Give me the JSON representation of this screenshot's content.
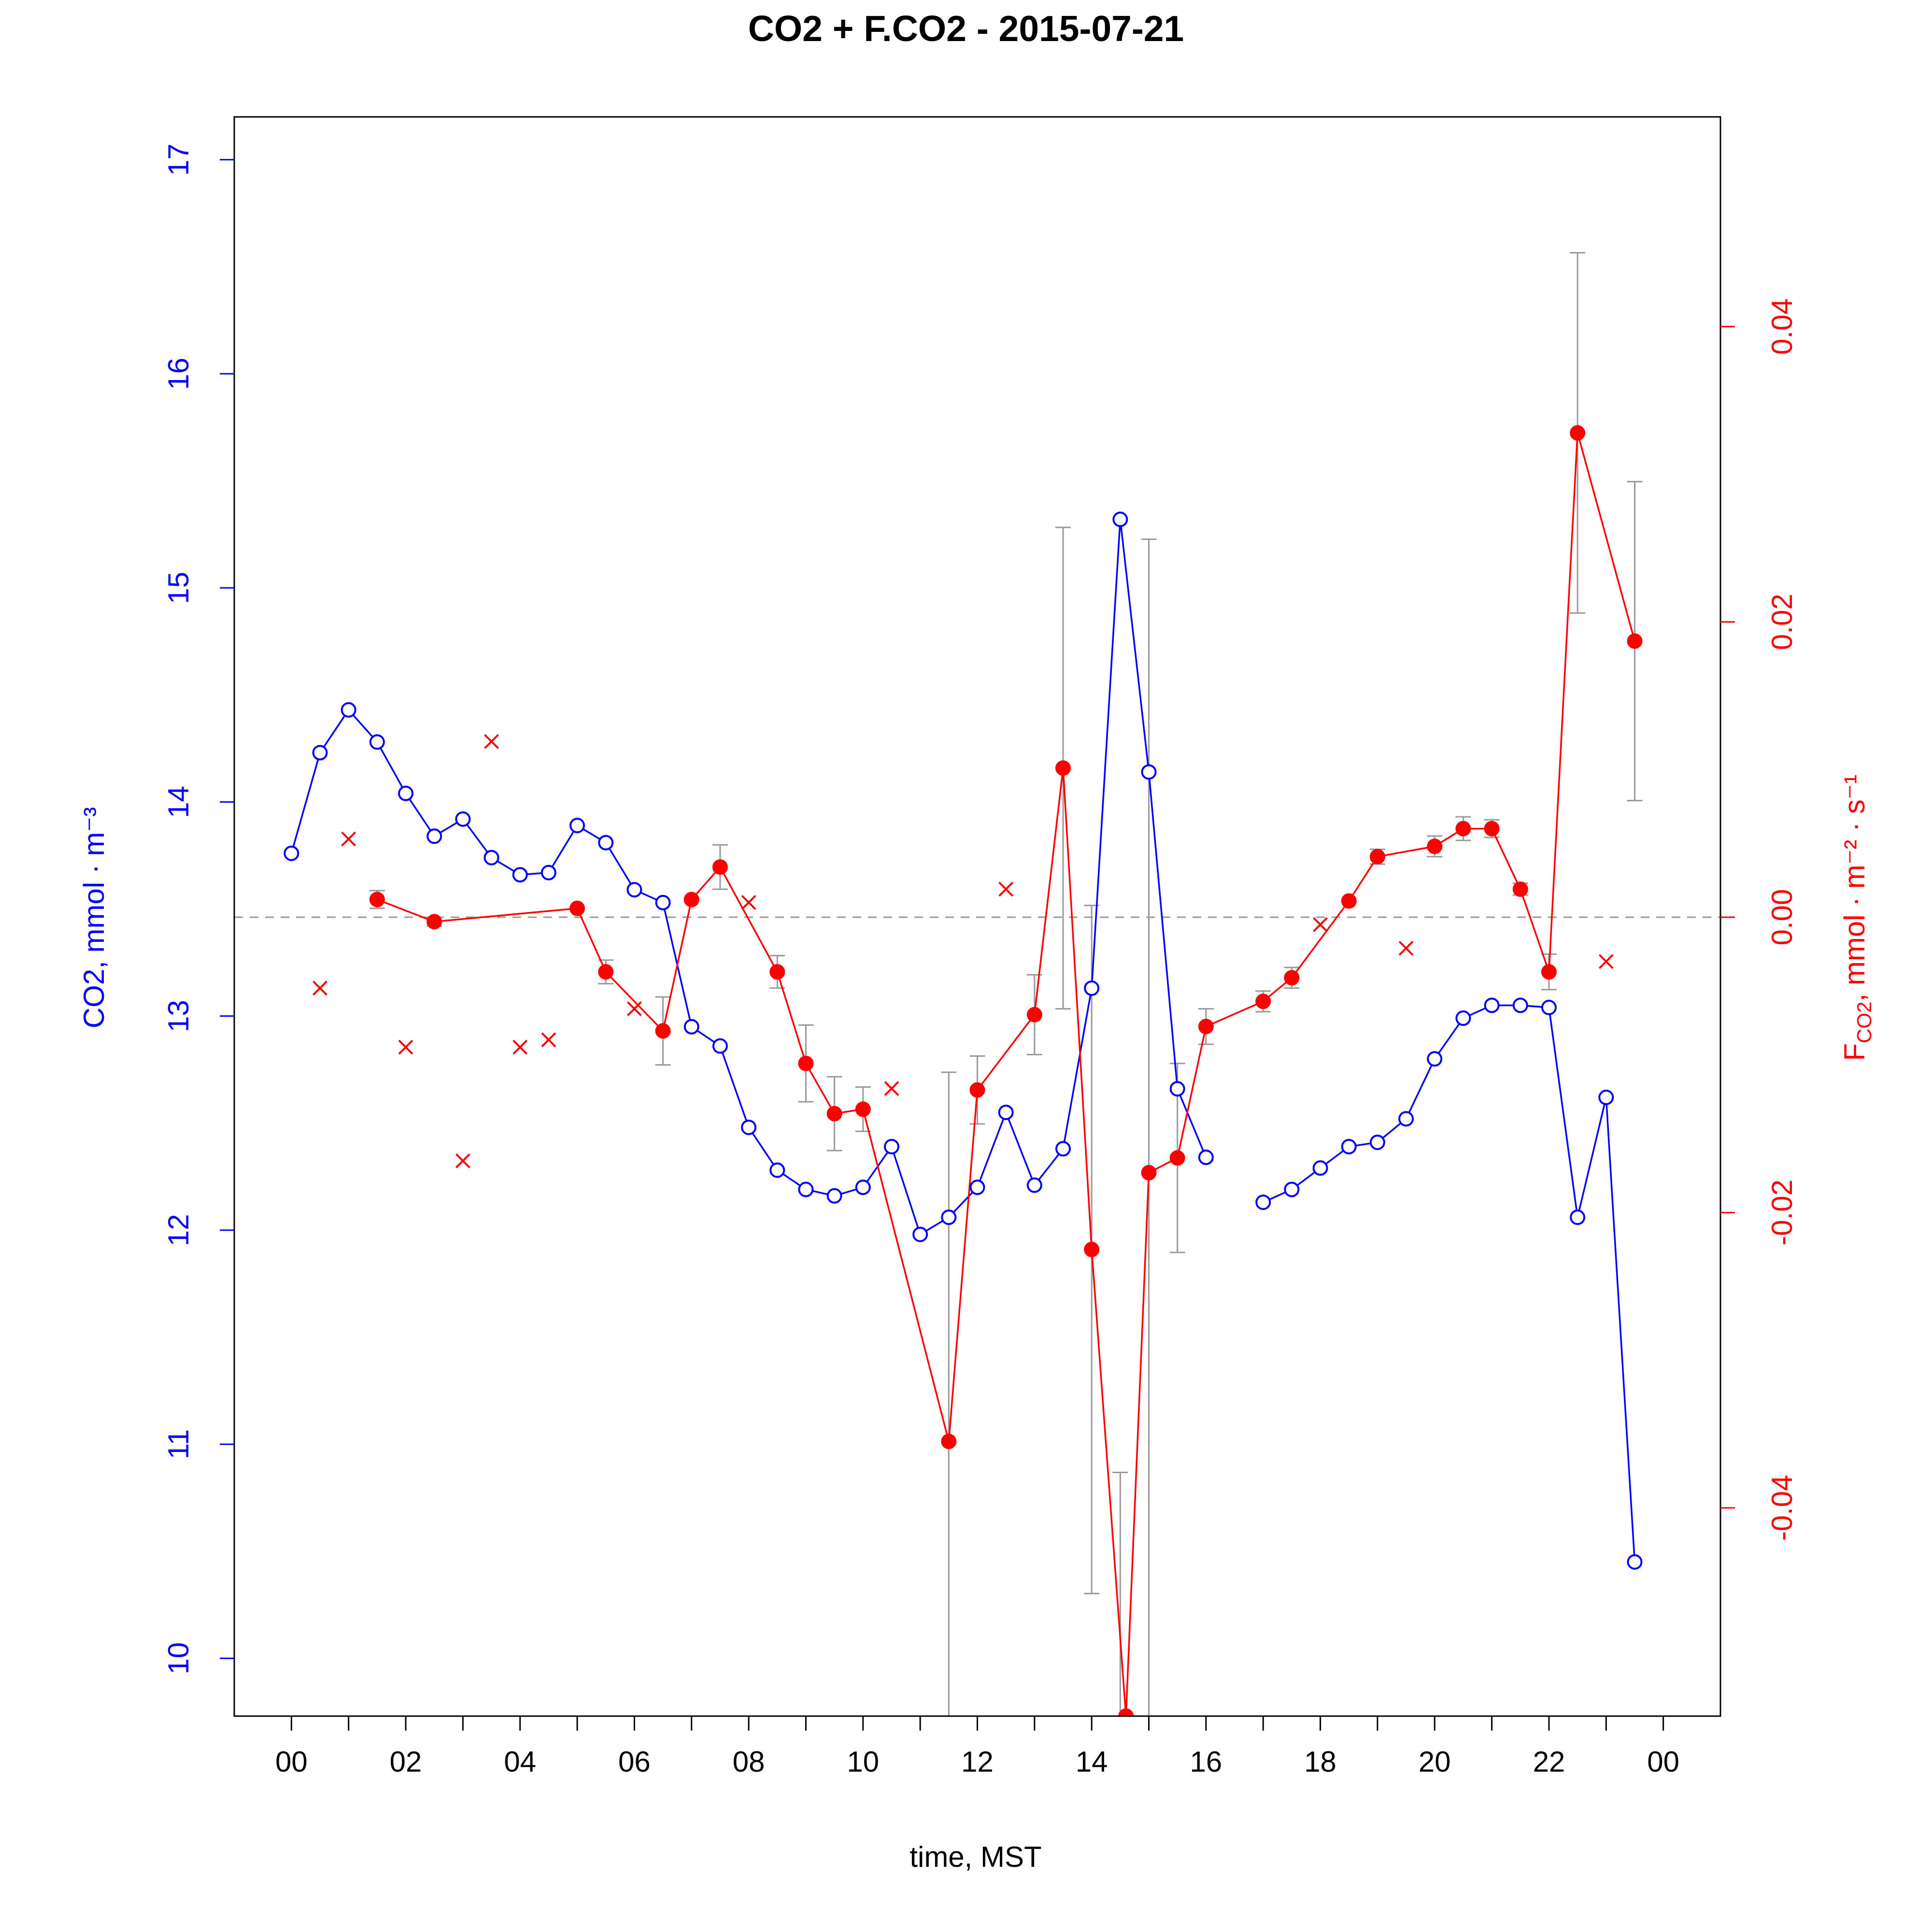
{
  "chart_data": {
    "type": "line",
    "title": "CO2 + F.CO2 -  2015-07-21",
    "xlabel": "time, MST",
    "ylabel_left": "CO2, mmol · m⁻³",
    "ylabel_right": {
      "prefix": "F",
      "sub": "CO2",
      "rest": ", mmol · m⁻² · s⁻¹"
    },
    "xlim": [
      -1.0,
      25.0
    ],
    "x_ticks": [
      0,
      1,
      2,
      3,
      4,
      5,
      6,
      7,
      8,
      9,
      10,
      11,
      12,
      13,
      14,
      15,
      16,
      17,
      18,
      19,
      20,
      21,
      22,
      23,
      24
    ],
    "x_tick_labels": [
      "00",
      "02",
      "04",
      "06",
      "08",
      "10",
      "12",
      "14",
      "16",
      "18",
      "20",
      "22",
      "00"
    ],
    "ylim_left": [
      9.73,
      17.2
    ],
    "y_ticks_left": [
      "10",
      "11",
      "12",
      "13",
      "14",
      "15",
      "16",
      "17"
    ],
    "ylim_right": [
      -0.0541,
      0.0542
    ],
    "y_ticks_right": [
      "-0.04",
      "-0.02",
      "0.00",
      "0.02",
      "0.04"
    ],
    "zero_line": 0.0,
    "grid": false,
    "colors": {
      "co2": "#0000ff",
      "flux": "#ff0000",
      "errorbar": "#999999",
      "zero_line": "#999999"
    },
    "series": [
      {
        "key": "co2",
        "axis": "left",
        "marker": "open-circle",
        "color": "#0000ff",
        "points": [
          [
            0.0,
            13.76
          ],
          [
            0.5,
            14.23
          ],
          [
            1.0,
            14.43
          ],
          [
            1.5,
            14.28
          ],
          [
            2.0,
            14.04
          ],
          [
            2.5,
            13.84
          ],
          [
            3.0,
            13.92
          ],
          [
            3.5,
            13.74
          ],
          [
            4.0,
            13.66
          ],
          [
            4.5,
            13.67
          ],
          [
            5.0,
            13.89
          ],
          [
            5.5,
            13.81
          ],
          [
            6.0,
            13.59
          ],
          [
            6.5,
            13.53
          ],
          [
            7.0,
            12.95
          ],
          [
            7.5,
            12.86
          ],
          [
            8.0,
            12.48
          ],
          [
            8.5,
            12.28
          ],
          [
            9.0,
            12.19
          ],
          [
            9.5,
            12.16
          ],
          [
            10.0,
            12.2
          ],
          [
            10.5,
            12.39
          ],
          [
            11.0,
            11.98
          ],
          [
            11.5,
            12.06
          ],
          [
            12.0,
            12.2
          ],
          [
            12.5,
            12.55
          ],
          [
            13.0,
            12.21
          ],
          [
            13.5,
            12.38
          ],
          [
            14.0,
            13.13
          ],
          [
            14.5,
            15.32
          ],
          [
            15.0,
            14.14
          ],
          [
            15.5,
            12.66
          ],
          [
            16.0,
            12.34
          ],
          [
            17.0,
            12.13
          ],
          [
            17.5,
            12.19
          ],
          [
            18.0,
            12.29
          ],
          [
            18.5,
            12.39
          ],
          [
            19.0,
            12.41
          ],
          [
            19.5,
            12.52
          ],
          [
            20.0,
            12.8
          ],
          [
            20.5,
            12.99
          ],
          [
            21.0,
            13.05
          ],
          [
            21.5,
            13.05
          ],
          [
            22.0,
            13.04
          ],
          [
            22.5,
            12.06
          ],
          [
            23.0,
            12.62
          ],
          [
            23.5,
            10.45
          ]
        ],
        "segments": [
          [
            0,
            32
          ],
          [
            33,
            46
          ]
        ]
      },
      {
        "key": "flux",
        "axis": "right",
        "marker": "filled-circle",
        "color": "#ff0000",
        "points": [
          [
            1.5,
            0.0012
          ],
          [
            2.5,
            -0.0003
          ],
          [
            5.0,
            0.0006
          ],
          [
            5.5,
            -0.0037
          ],
          [
            6.5,
            -0.0077
          ],
          [
            7.0,
            0.0012
          ],
          [
            7.5,
            0.0034
          ],
          [
            8.5,
            -0.0037
          ],
          [
            9.0,
            -0.0099
          ],
          [
            9.5,
            -0.0133
          ],
          [
            10.0,
            -0.013
          ],
          [
            11.5,
            -0.0355
          ],
          [
            12.0,
            -0.0117
          ],
          [
            13.0,
            -0.0066
          ],
          [
            13.5,
            0.0101
          ],
          [
            14.0,
            -0.0225
          ],
          [
            14.6,
            -0.0541
          ],
          [
            15.0,
            -0.0173
          ],
          [
            15.5,
            -0.0163
          ],
          [
            16.0,
            -0.0074
          ],
          [
            17.0,
            -0.0057
          ],
          [
            17.5,
            -0.0041
          ],
          [
            18.5,
            0.0011
          ],
          [
            19.0,
            0.0041
          ],
          [
            20.0,
            0.0048
          ],
          [
            20.5,
            0.006
          ],
          [
            21.0,
            0.006
          ],
          [
            21.5,
            0.0019
          ],
          [
            22.0,
            -0.0037
          ],
          [
            22.5,
            0.0328
          ],
          [
            23.5,
            0.0187
          ]
        ],
        "errors": [
          [
            1.5,
            0.0006
          ],
          [
            2.5,
            0.0003
          ],
          [
            5.5,
            0.0008
          ],
          [
            6.5,
            0.0023
          ],
          [
            7.5,
            0.0015
          ],
          [
            8.5,
            0.0011
          ],
          [
            9.0,
            0.0026
          ],
          [
            9.5,
            0.0025
          ],
          [
            10.0,
            0.0015
          ],
          [
            11.5,
            0.025
          ],
          [
            12.0,
            0.0023
          ],
          [
            13.0,
            0.0027
          ],
          [
            13.5,
            0.0163
          ],
          [
            14.0,
            0.0233
          ],
          [
            14.5,
            0.0165
          ],
          [
            15.0,
            0.0429
          ],
          [
            15.5,
            0.0064
          ],
          [
            16.0,
            0.0012
          ],
          [
            17.0,
            0.0007
          ],
          [
            17.5,
            0.0007
          ],
          [
            19.0,
            0.0005
          ],
          [
            20.0,
            0.0007
          ],
          [
            20.5,
            0.0008
          ],
          [
            21.0,
            0.0006
          ],
          [
            21.5,
            0.0004
          ],
          [
            22.0,
            0.0012
          ],
          [
            22.5,
            0.0122
          ],
          [
            23.5,
            0.0108
          ]
        ]
      },
      {
        "key": "flux-excluded",
        "axis": "right",
        "marker": "cross",
        "color": "#ff0000",
        "points": [
          [
            0.5,
            -0.0048
          ],
          [
            1.0,
            0.0053
          ],
          [
            2.0,
            -0.0088
          ],
          [
            3.0,
            -0.0165
          ],
          [
            3.5,
            0.0119
          ],
          [
            4.0,
            -0.0088
          ],
          [
            4.5,
            -0.0083
          ],
          [
            6.0,
            -0.0062
          ],
          [
            8.0,
            0.001
          ],
          [
            10.5,
            -0.0116
          ],
          [
            12.5,
            0.0019
          ],
          [
            18.0,
            -0.0005
          ],
          [
            19.5,
            -0.0021
          ],
          [
            23.0,
            -0.003
          ]
        ]
      }
    ]
  }
}
